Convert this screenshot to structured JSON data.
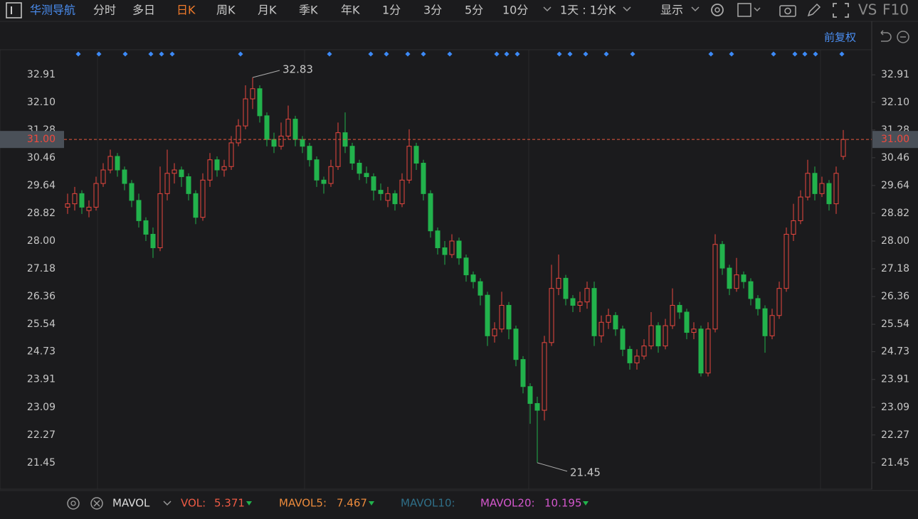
{
  "toolbar": {
    "stock_name": "华测导航",
    "tabs": [
      "分时",
      "多日",
      "日K",
      "周K",
      "月K",
      "季K",
      "年K",
      "1分",
      "3分",
      "5分",
      "10分"
    ],
    "active_tab": 2,
    "period_select": "1天 : 1分K",
    "display": "显示",
    "vs": "VS",
    "f10": "F10",
    "adjust": "前复权"
  },
  "indicator": {
    "name": "MAVOL",
    "vol_label": "VOL:",
    "vol": 5.371,
    "mavol5_label": "MAVOL5:",
    "mavol5": 7.467,
    "mavol10_label": "MAVOL10:",
    "mavol20_label": "MAVOL20:",
    "mavol20": 10.195
  },
  "chart_data": {
    "type": "candlestick",
    "up_color": "#e8473f",
    "down_color": "#22b24c",
    "ylim": [
      20.67,
      33.65
    ],
    "yticks": [
      {
        "value": 21.45,
        "label": "21.45"
      },
      22.27,
      23.09,
      23.91,
      24.73,
      25.54,
      26.36,
      27.18,
      {
        "value": 28,
        "label": "28.00"
      },
      28.82,
      29.64,
      30.46,
      31.28,
      {
        "value": 32.1,
        "label": "32.10"
      },
      32.91
    ],
    "last_price": {
      "value": 31,
      "label": "31.00"
    },
    "ohlc": [
      [
        29.0,
        29.4,
        28.8,
        29.1
      ],
      [
        29.1,
        29.6,
        28.9,
        29.4
      ],
      [
        29.4,
        29.5,
        28.8,
        29.0
      ],
      [
        28.9,
        29.2,
        28.7,
        29.0
      ],
      [
        29.0,
        29.9,
        28.9,
        29.7
      ],
      [
        29.7,
        30.3,
        29.6,
        30.1
      ],
      [
        30.1,
        30.7,
        30.0,
        30.5
      ],
      [
        30.5,
        30.6,
        29.9,
        30.1
      ],
      [
        30.1,
        30.2,
        29.5,
        29.7
      ],
      [
        29.7,
        29.8,
        29.0,
        29.2
      ],
      [
        29.2,
        29.4,
        28.4,
        28.6
      ],
      [
        28.6,
        28.7,
        28.0,
        28.2
      ],
      [
        28.2,
        28.4,
        27.5,
        27.8
      ],
      [
        27.8,
        30.2,
        27.7,
        29.4
      ],
      [
        29.4,
        30.7,
        29.2,
        30.0
      ],
      [
        30.0,
        30.3,
        29.7,
        30.1
      ],
      [
        30.1,
        30.2,
        29.6,
        29.9
      ],
      [
        29.9,
        30.0,
        29.2,
        29.4
      ],
      [
        29.4,
        29.5,
        28.5,
        28.7
      ],
      [
        28.7,
        30.0,
        28.6,
        29.8
      ],
      [
        29.8,
        30.6,
        29.6,
        30.4
      ],
      [
        30.4,
        30.5,
        29.9,
        30.1
      ],
      [
        30.1,
        30.4,
        29.9,
        30.2
      ],
      [
        30.2,
        31.1,
        30.1,
        30.9
      ],
      [
        30.9,
        31.6,
        30.8,
        31.4
      ],
      [
        31.4,
        32.6,
        31.3,
        32.2
      ],
      [
        32.2,
        32.83,
        31.9,
        32.5
      ],
      [
        32.5,
        32.6,
        31.5,
        31.7
      ],
      [
        31.7,
        31.8,
        30.8,
        31.0
      ],
      [
        31.0,
        31.2,
        30.6,
        30.8
      ],
      [
        30.8,
        31.5,
        30.7,
        31.1
      ],
      [
        31.1,
        32.0,
        31.0,
        31.6
      ],
      [
        31.6,
        31.7,
        30.8,
        31.0
      ],
      [
        31.0,
        31.1,
        30.6,
        30.8
      ],
      [
        30.8,
        30.9,
        30.2,
        30.4
      ],
      [
        30.4,
        30.5,
        29.6,
        29.8
      ],
      [
        29.8,
        29.9,
        29.4,
        29.7
      ],
      [
        29.7,
        30.4,
        29.6,
        30.2
      ],
      [
        30.2,
        31.5,
        30.1,
        31.2
      ],
      [
        31.2,
        31.8,
        30.6,
        30.8
      ],
      [
        30.8,
        30.9,
        30.1,
        30.3
      ],
      [
        30.3,
        30.4,
        29.8,
        30.0
      ],
      [
        30.0,
        30.2,
        29.7,
        29.9
      ],
      [
        29.9,
        30.0,
        29.2,
        29.5
      ],
      [
        29.5,
        29.7,
        29.2,
        29.4
      ],
      [
        29.2,
        29.6,
        29.0,
        29.4
      ],
      [
        29.4,
        29.5,
        28.9,
        29.1
      ],
      [
        29.1,
        30.0,
        29.0,
        29.8
      ],
      [
        29.8,
        31.3,
        29.7,
        30.8
      ],
      [
        30.8,
        30.9,
        30.1,
        30.3
      ],
      [
        30.3,
        30.4,
        29.2,
        29.4
      ],
      [
        29.4,
        29.5,
        28.1,
        28.3
      ],
      [
        28.3,
        28.4,
        27.6,
        27.8
      ],
      [
        27.8,
        28.0,
        27.3,
        27.6
      ],
      [
        27.6,
        28.2,
        27.5,
        28.0
      ],
      [
        28.0,
        28.1,
        27.3,
        27.5
      ],
      [
        27.5,
        27.6,
        26.8,
        27.0
      ],
      [
        27.0,
        27.1,
        26.6,
        26.8
      ],
      [
        26.8,
        26.9,
        26.1,
        26.4
      ],
      [
        26.4,
        26.5,
        24.9,
        25.2
      ],
      [
        25.2,
        25.6,
        25.0,
        25.4
      ],
      [
        25.4,
        26.5,
        25.3,
        26.1
      ],
      [
        26.1,
        26.2,
        25.1,
        25.4
      ],
      [
        25.4,
        25.5,
        24.3,
        24.5
      ],
      [
        24.5,
        24.6,
        23.5,
        23.7
      ],
      [
        23.7,
        23.8,
        22.6,
        23.2
      ],
      [
        23.2,
        23.4,
        21.45,
        23.0
      ],
      [
        23.0,
        25.2,
        22.7,
        25.0
      ],
      [
        25.0,
        27.3,
        24.9,
        26.6
      ],
      [
        26.6,
        27.6,
        26.4,
        26.9
      ],
      [
        26.9,
        27.0,
        26.1,
        26.3
      ],
      [
        26.3,
        26.4,
        25.9,
        26.1
      ],
      [
        26.1,
        26.5,
        25.9,
        26.2
      ],
      [
        26.2,
        26.8,
        26.0,
        26.6
      ],
      [
        26.6,
        26.8,
        24.9,
        25.2
      ],
      [
        25.2,
        25.8,
        25.0,
        25.6
      ],
      [
        25.6,
        26.0,
        25.4,
        25.8
      ],
      [
        25.8,
        25.9,
        25.2,
        25.4
      ],
      [
        25.4,
        25.5,
        24.6,
        24.8
      ],
      [
        24.8,
        24.9,
        24.2,
        24.4
      ],
      [
        24.4,
        24.8,
        24.2,
        24.6
      ],
      [
        24.6,
        25.1,
        24.5,
        24.9
      ],
      [
        24.9,
        25.9,
        24.8,
        25.5
      ],
      [
        25.5,
        25.6,
        24.7,
        24.9
      ],
      [
        24.9,
        25.7,
        24.8,
        25.5
      ],
      [
        25.5,
        26.6,
        25.4,
        26.1
      ],
      [
        26.1,
        26.2,
        25.7,
        25.9
      ],
      [
        25.9,
        26.0,
        25.1,
        25.3
      ],
      [
        25.3,
        25.6,
        25.1,
        25.4
      ],
      [
        25.4,
        25.5,
        24.0,
        24.1
      ],
      [
        24.1,
        25.6,
        24.0,
        25.4
      ],
      [
        25.4,
        28.2,
        25.3,
        27.9
      ],
      [
        27.9,
        28.0,
        27.0,
        27.2
      ],
      [
        27.2,
        27.3,
        26.4,
        26.6
      ],
      [
        26.6,
        27.5,
        26.5,
        27.0
      ],
      [
        27.0,
        27.1,
        26.6,
        26.8
      ],
      [
        26.8,
        26.9,
        26.1,
        26.3
      ],
      [
        26.3,
        26.4,
        25.8,
        26.0
      ],
      [
        26.0,
        26.1,
        24.7,
        25.2
      ],
      [
        25.2,
        26.0,
        25.1,
        25.8
      ],
      [
        25.8,
        26.8,
        25.7,
        26.6
      ],
      [
        26.6,
        28.4,
        26.5,
        28.2
      ],
      [
        28.2,
        29.1,
        28.0,
        28.6
      ],
      [
        28.6,
        29.5,
        28.5,
        29.3
      ],
      [
        29.3,
        30.4,
        29.2,
        30.0
      ],
      [
        30.0,
        30.2,
        29.2,
        29.4
      ],
      [
        29.4,
        29.9,
        29.3,
        29.7
      ],
      [
        29.7,
        29.8,
        28.9,
        29.1
      ],
      [
        29.1,
        30.2,
        28.8,
        30.0
      ],
      [
        30.5,
        31.28,
        30.4,
        31.0
      ]
    ],
    "high_index": 26,
    "low_index": 66
  }
}
